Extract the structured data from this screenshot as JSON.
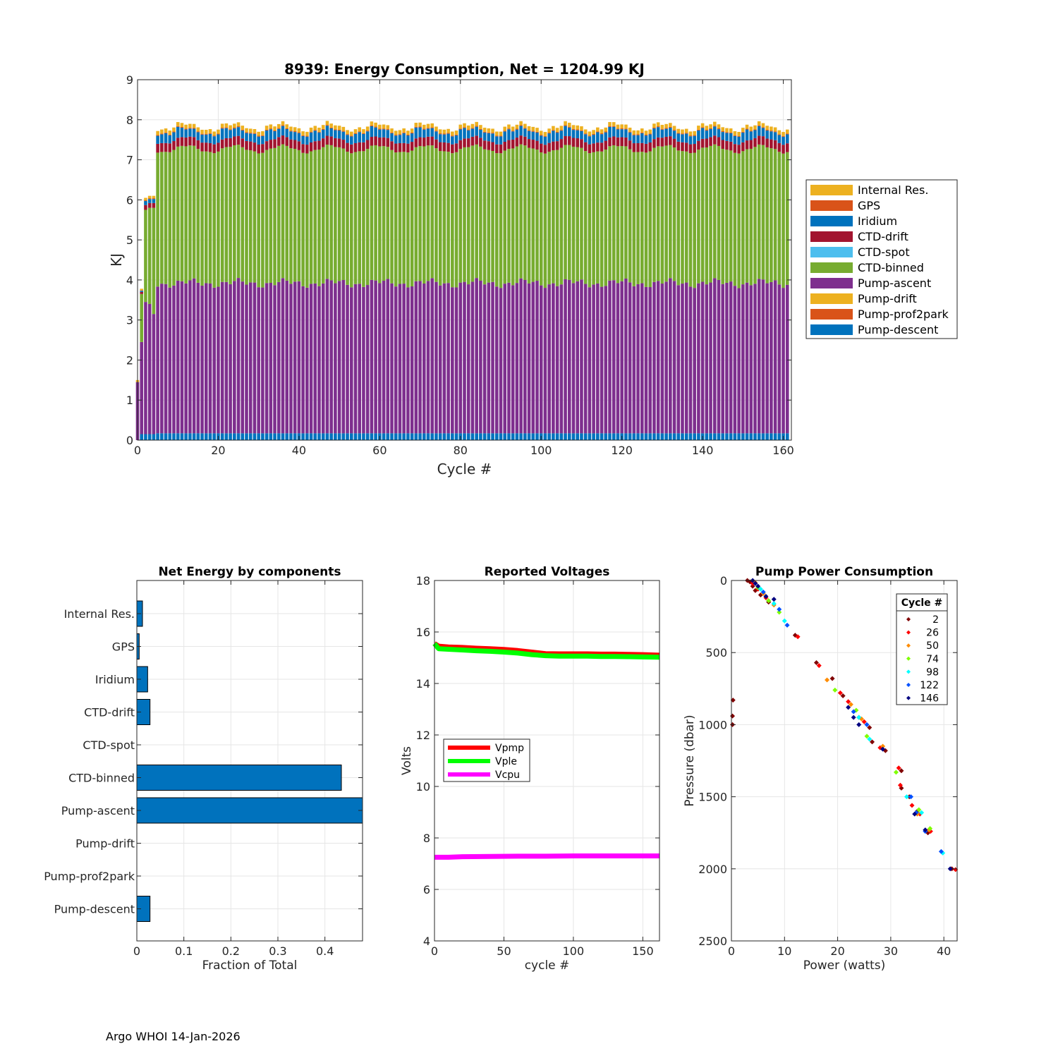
{
  "footer": "Argo WHOI 14-Jan-2026",
  "colors": {
    "internal_res": "#EDB120",
    "gps": "#D95319",
    "iridium": "#0072BD",
    "ctd_drift": "#A2142F",
    "ctd_spot": "#4DBEEE",
    "ctd_binned": "#77AC30",
    "pump_ascent": "#7E2F8E",
    "pump_drift": "#EDB120",
    "pump_prof2park": "#D95319",
    "pump_descent": "#0072BD",
    "vpmp": "#FF0000",
    "vple": "#00FF00",
    "vcpu": "#FF00FF"
  },
  "chart_data": [
    {
      "type": "bar",
      "stacked": true,
      "title": "8939: Energy Consumption,  Net = 1204.99 KJ",
      "xlabel": "Cycle #",
      "ylabel": "KJ",
      "xlim": [
        0,
        162
      ],
      "ylim": [
        0,
        9
      ],
      "xticks": [
        0,
        20,
        40,
        60,
        80,
        100,
        120,
        140,
        160
      ],
      "yticks": [
        0,
        1,
        2,
        3,
        4,
        5,
        6,
        7,
        8,
        9
      ],
      "legend": [
        "Internal Res.",
        "GPS",
        "Iridium",
        "CTD-drift",
        "CTD-spot",
        "CTD-binned",
        "Pump-ascent",
        "Pump-drift",
        "Pump-prof2park",
        "Pump-descent"
      ],
      "legend_position": "outside-right",
      "cycles": 162,
      "components_typical": {
        "Pump-descent": 0.17,
        "Pump-prof2park": 0.0,
        "Pump-drift": 0.0,
        "Pump-ascent": 3.75,
        "CTD-binned": 3.35,
        "CTD-spot": 0.0,
        "CTD-drift": 0.22,
        "Iridium": 0.2,
        "GPS": 0.02,
        "Internal Res.": 0.1
      },
      "early_cycles": [
        {
          "cycle": 0,
          "Pump-descent": 0.0,
          "Pump-ascent": 1.45,
          "CTD-binned": 0.0,
          "CTD-drift": 0.0,
          "Iridium": 0.0,
          "GPS": 0.0,
          "Internal Res.": 0.05
        },
        {
          "cycle": 1,
          "Pump-descent": 0.15,
          "Pump-ascent": 2.3,
          "CTD-binned": 1.2,
          "CTD-drift": 0.05,
          "Iridium": 0.03,
          "GPS": 0.01,
          "Internal Res.": 0.04
        },
        {
          "cycle": 2,
          "Pump-descent": 0.15,
          "Pump-ascent": 3.3,
          "CTD-binned": 2.3,
          "CTD-drift": 0.12,
          "Iridium": 0.1,
          "GPS": 0.02,
          "Internal Res.": 0.06
        },
        {
          "cycle": 3,
          "Pump-descent": 0.15,
          "Pump-ascent": 3.25,
          "CTD-binned": 2.4,
          "CTD-drift": 0.12,
          "Iridium": 0.1,
          "GPS": 0.02,
          "Internal Res.": 0.06
        },
        {
          "cycle": 4,
          "Pump-descent": 0.15,
          "Pump-ascent": 3.0,
          "CTD-binned": 2.65,
          "CTD-drift": 0.12,
          "Iridium": 0.1,
          "GPS": 0.02,
          "Internal Res.": 0.06
        }
      ]
    },
    {
      "type": "barh",
      "title": "Net Energy by components",
      "xlabel": "Fraction of Total",
      "xlim": [
        0,
        0.48
      ],
      "xticks": [
        0,
        0.1,
        0.2,
        0.3,
        0.4
      ],
      "xtick_labels": [
        "0",
        "0.1",
        "0.2",
        "0.3",
        "0.4"
      ],
      "categories": [
        "Internal Res.",
        "GPS",
        "Iridium",
        "CTD-drift",
        "CTD-spot",
        "CTD-binned",
        "Pump-ascent",
        "Pump-drift",
        "Pump-prof2park",
        "Pump-descent"
      ],
      "values": [
        0.012,
        0.005,
        0.023,
        0.028,
        0.0,
        0.435,
        0.48,
        0.0,
        0.0,
        0.028
      ]
    },
    {
      "type": "line",
      "title": "Reported Voltages",
      "xlabel": "cycle #",
      "ylabel": "Volts",
      "xlim": [
        0,
        162
      ],
      "ylim": [
        4,
        18
      ],
      "xticks": [
        0,
        50,
        100,
        150
      ],
      "yticks": [
        4,
        6,
        8,
        10,
        12,
        14,
        16,
        18
      ],
      "legend_position": "center-left",
      "series": [
        {
          "name": "Vpmp",
          "x": [
            0,
            3,
            10,
            20,
            30,
            40,
            50,
            60,
            70,
            80,
            90,
            100,
            110,
            120,
            130,
            140,
            150,
            162
          ],
          "values": [
            15.55,
            15.45,
            15.42,
            15.4,
            15.37,
            15.35,
            15.32,
            15.28,
            15.22,
            15.16,
            15.15,
            15.15,
            15.15,
            15.14,
            15.14,
            15.13,
            15.12,
            15.1
          ]
        },
        {
          "name": "Vple",
          "x": [
            0,
            3,
            10,
            20,
            30,
            40,
            50,
            60,
            70,
            80,
            90,
            100,
            110,
            120,
            130,
            140,
            150,
            162
          ],
          "values": [
            15.55,
            15.35,
            15.33,
            15.3,
            15.27,
            15.25,
            15.22,
            15.18,
            15.12,
            15.08,
            15.06,
            15.06,
            15.06,
            15.05,
            15.05,
            15.04,
            15.03,
            15.02
          ]
        },
        {
          "name": "Vcpu",
          "x": [
            0,
            10,
            20,
            40,
            60,
            80,
            100,
            120,
            140,
            162
          ],
          "values": [
            7.25,
            7.25,
            7.27,
            7.28,
            7.29,
            7.29,
            7.3,
            7.3,
            7.3,
            7.3
          ]
        }
      ]
    },
    {
      "type": "scatter",
      "title": "Pump Power Consumption",
      "xlabel": "Power (watts)",
      "ylabel": "Pressure (dbar)",
      "xlim": [
        0,
        42.5
      ],
      "ylim": [
        0,
        2500
      ],
      "y_reversed": true,
      "xticks": [
        0,
        10,
        20,
        30,
        40
      ],
      "yticks": [
        0,
        500,
        1000,
        1500,
        2000,
        2500
      ],
      "legend_title": "Cycle #",
      "legend_position": "top-right",
      "series": [
        {
          "name": "2",
          "color": "#800000",
          "points": [
            [
              3,
              0
            ],
            [
              3.5,
              10
            ],
            [
              4,
              40
            ],
            [
              4.5,
              70
            ],
            [
              5.5,
              100
            ],
            [
              7,
              150
            ],
            [
              12,
              380
            ],
            [
              16,
              570
            ],
            [
              19,
              680
            ],
            [
              21,
              800
            ],
            [
              24,
              950
            ],
            [
              26,
              1020
            ],
            [
              26.5,
              1120
            ],
            [
              29,
              1180
            ],
            [
              32,
              1320
            ],
            [
              32,
              1440
            ],
            [
              33.5,
              1500
            ],
            [
              35,
              1600
            ],
            [
              37,
              1750
            ],
            [
              41.5,
              2000
            ],
            [
              0.3,
              830
            ],
            [
              0.2,
              940
            ],
            [
              0.2,
              1000
            ]
          ]
        },
        {
          "name": "26",
          "color": "#FF0000",
          "points": [
            [
              4,
              20
            ],
            [
              5,
              60
            ],
            [
              6.5,
              120
            ],
            [
              12.5,
              390
            ],
            [
              16.5,
              590
            ],
            [
              20.5,
              780
            ],
            [
              22,
              840
            ],
            [
              25,
              980
            ],
            [
              28,
              1160
            ],
            [
              31.5,
              1300
            ],
            [
              31.8,
              1420
            ],
            [
              34,
              1560
            ],
            [
              35.5,
              1620
            ],
            [
              37.5,
              1740
            ],
            [
              42.2,
              2005
            ]
          ]
        },
        {
          "name": "50",
          "color": "#FF8C00",
          "points": [
            [
              4.5,
              15
            ],
            [
              6,
              90
            ],
            [
              8,
              170
            ],
            [
              18,
              690
            ],
            [
              22.5,
              860
            ],
            [
              24.5,
              960
            ],
            [
              28.5,
              1150
            ],
            [
              35,
              1620
            ],
            [
              37.2,
              1730
            ]
          ]
        },
        {
          "name": "74",
          "color": "#7FFF00",
          "points": [
            [
              5,
              50
            ],
            [
              7,
              140
            ],
            [
              9,
              220
            ],
            [
              19.5,
              760
            ],
            [
              23.5,
              900
            ],
            [
              25.5,
              1080
            ],
            [
              31,
              1330
            ],
            [
              35.3,
              1590
            ],
            [
              37.4,
              1720
            ]
          ]
        },
        {
          "name": "98",
          "color": "#00FFFF",
          "points": [
            [
              5.5,
              60
            ],
            [
              8,
              160
            ],
            [
              10,
              280
            ],
            [
              24,
              950
            ],
            [
              26,
              1100
            ],
            [
              33,
              1500
            ],
            [
              35.8,
              1610
            ],
            [
              39.8,
              1890
            ]
          ]
        },
        {
          "name": "122",
          "color": "#0050FF",
          "points": [
            [
              6,
              80
            ],
            [
              9,
              200
            ],
            [
              10.5,
              310
            ],
            [
              23,
              910
            ],
            [
              25.5,
              1000
            ],
            [
              33.8,
              1500
            ],
            [
              34.8,
              1610
            ],
            [
              36.5,
              1740
            ],
            [
              39.5,
              1880
            ]
          ]
        },
        {
          "name": "146",
          "color": "#000080",
          "points": [
            [
              4,
              0
            ],
            [
              4.5,
              20
            ],
            [
              5,
              40
            ],
            [
              6.5,
              110
            ],
            [
              8,
              130
            ],
            [
              22,
              880
            ],
            [
              23,
              950
            ],
            [
              24,
              1000
            ],
            [
              28.5,
              1170
            ],
            [
              34.5,
              1620
            ],
            [
              36.5,
              1730
            ],
            [
              41.2,
              2000
            ]
          ]
        }
      ]
    }
  ]
}
